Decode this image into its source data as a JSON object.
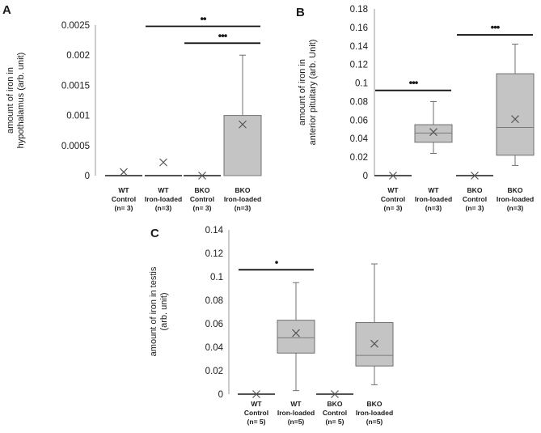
{
  "chart_data": [
    {
      "panel": "A",
      "type": "box",
      "ylabel_lines": [
        "amount of iron in",
        "hypothalamus (arb. unit)"
      ],
      "ylim": [
        0,
        0.0025
      ],
      "ticks": [
        0,
        0.0005,
        0.001,
        0.0015,
        0.002,
        0.0025
      ],
      "tick_labels": [
        "0",
        "0.0005",
        "0.001",
        "0.0015",
        "0.002",
        "0.0025"
      ],
      "categories": [
        {
          "lines": [
            "WT",
            "Control",
            "(n= 3)"
          ]
        },
        {
          "lines": [
            "WT",
            "Iron-loaded",
            "(n=3)"
          ]
        },
        {
          "lines": [
            "BKO",
            "Control",
            "(n= 3)"
          ]
        },
        {
          "lines": [
            "BKO",
            "Iron-loaded",
            "(n=3)"
          ]
        }
      ],
      "boxes": [
        {
          "min": 0,
          "q1": 0,
          "median": 0,
          "q3": 0,
          "max": 0,
          "mean": 6e-05
        },
        {
          "min": 0,
          "q1": 0,
          "median": 0,
          "q3": 0,
          "max": 0,
          "mean": 0.00022
        },
        {
          "min": 0,
          "q1": 0,
          "median": 0,
          "q3": 0,
          "max": 0,
          "mean": 0
        },
        {
          "min": 0,
          "q1": 0,
          "median": 0,
          "q3": 0.001,
          "max": 0.002,
          "mean": 0.00085
        }
      ],
      "significance": [
        {
          "from": 1,
          "to": 3,
          "level": 0.00248,
          "label": "••"
        },
        {
          "from": 2,
          "to": 3,
          "level": 0.0022,
          "label": "•••"
        }
      ]
    },
    {
      "panel": "B",
      "type": "box",
      "ylabel_lines": [
        "amount of iron in",
        "anterior pituitary (arb. Unit)"
      ],
      "ylim": [
        0,
        0.18
      ],
      "ticks": [
        0,
        0.02,
        0.04,
        0.06,
        0.08,
        0.1,
        0.12,
        0.14,
        0.16,
        0.18
      ],
      "tick_labels": [
        "0",
        "0.02",
        "0.04",
        "0.06",
        "0.08",
        "0.1",
        "0.12",
        "0.14",
        "0.16",
        "0.18"
      ],
      "categories": [
        {
          "lines": [
            "WT",
            "Control",
            "(n= 3)"
          ]
        },
        {
          "lines": [
            "WT",
            "Iron-loaded",
            "(n=3)"
          ]
        },
        {
          "lines": [
            "BKO",
            "Control",
            "(n= 3)"
          ]
        },
        {
          "lines": [
            "BKO",
            "Iron-loaded",
            "(n=3)"
          ]
        }
      ],
      "boxes": [
        {
          "min": 0,
          "q1": 0,
          "median": 0,
          "q3": 0,
          "max": 0,
          "mean": 0
        },
        {
          "min": 0.024,
          "q1": 0.036,
          "median": 0.046,
          "q3": 0.055,
          "max": 0.08,
          "mean": 0.047
        },
        {
          "min": 0,
          "q1": 0,
          "median": 0,
          "q3": 0,
          "max": 0,
          "mean": 0
        },
        {
          "min": 0.011,
          "q1": 0.022,
          "median": 0.052,
          "q3": 0.11,
          "max": 0.142,
          "mean": 0.061
        }
      ],
      "significance": [
        {
          "from": 0,
          "to": 1,
          "level": 0.092,
          "label": "•••"
        },
        {
          "from": 2,
          "to": 3,
          "level": 0.152,
          "label": "•••"
        }
      ]
    },
    {
      "panel": "C",
      "type": "box",
      "ylabel_lines": [
        "amount of iron in testis",
        "(arb. unit)"
      ],
      "ylim": [
        0,
        0.14
      ],
      "ticks": [
        0,
        0.02,
        0.04,
        0.06,
        0.08,
        0.1,
        0.12,
        0.14
      ],
      "tick_labels": [
        "0",
        "0.02",
        "0.04",
        "0.06",
        "0.08",
        "0.1",
        "0.12",
        "0.14"
      ],
      "categories": [
        {
          "lines": [
            "WT",
            "Control",
            "(n= 5)"
          ]
        },
        {
          "lines": [
            "WT",
            "Iron-loaded",
            "(n=5)"
          ]
        },
        {
          "lines": [
            "BKO",
            "Control",
            "(n= 5)"
          ]
        },
        {
          "lines": [
            "BKO",
            "Iron-loaded",
            "(n=5)"
          ]
        }
      ],
      "boxes": [
        {
          "min": 0,
          "q1": 0,
          "median": 0,
          "q3": 0,
          "max": 0,
          "mean": 0
        },
        {
          "min": 0.003,
          "q1": 0.035,
          "median": 0.048,
          "q3": 0.063,
          "max": 0.095,
          "mean": 0.052
        },
        {
          "min": 0,
          "q1": 0,
          "median": 0,
          "q3": 0,
          "max": 0,
          "mean": 0
        },
        {
          "min": 0.008,
          "q1": 0.024,
          "median": 0.033,
          "q3": 0.061,
          "max": 0.111,
          "mean": 0.043
        }
      ],
      "significance": [
        {
          "from": 0,
          "to": 1,
          "level": 0.106,
          "label": "•"
        }
      ]
    }
  ]
}
